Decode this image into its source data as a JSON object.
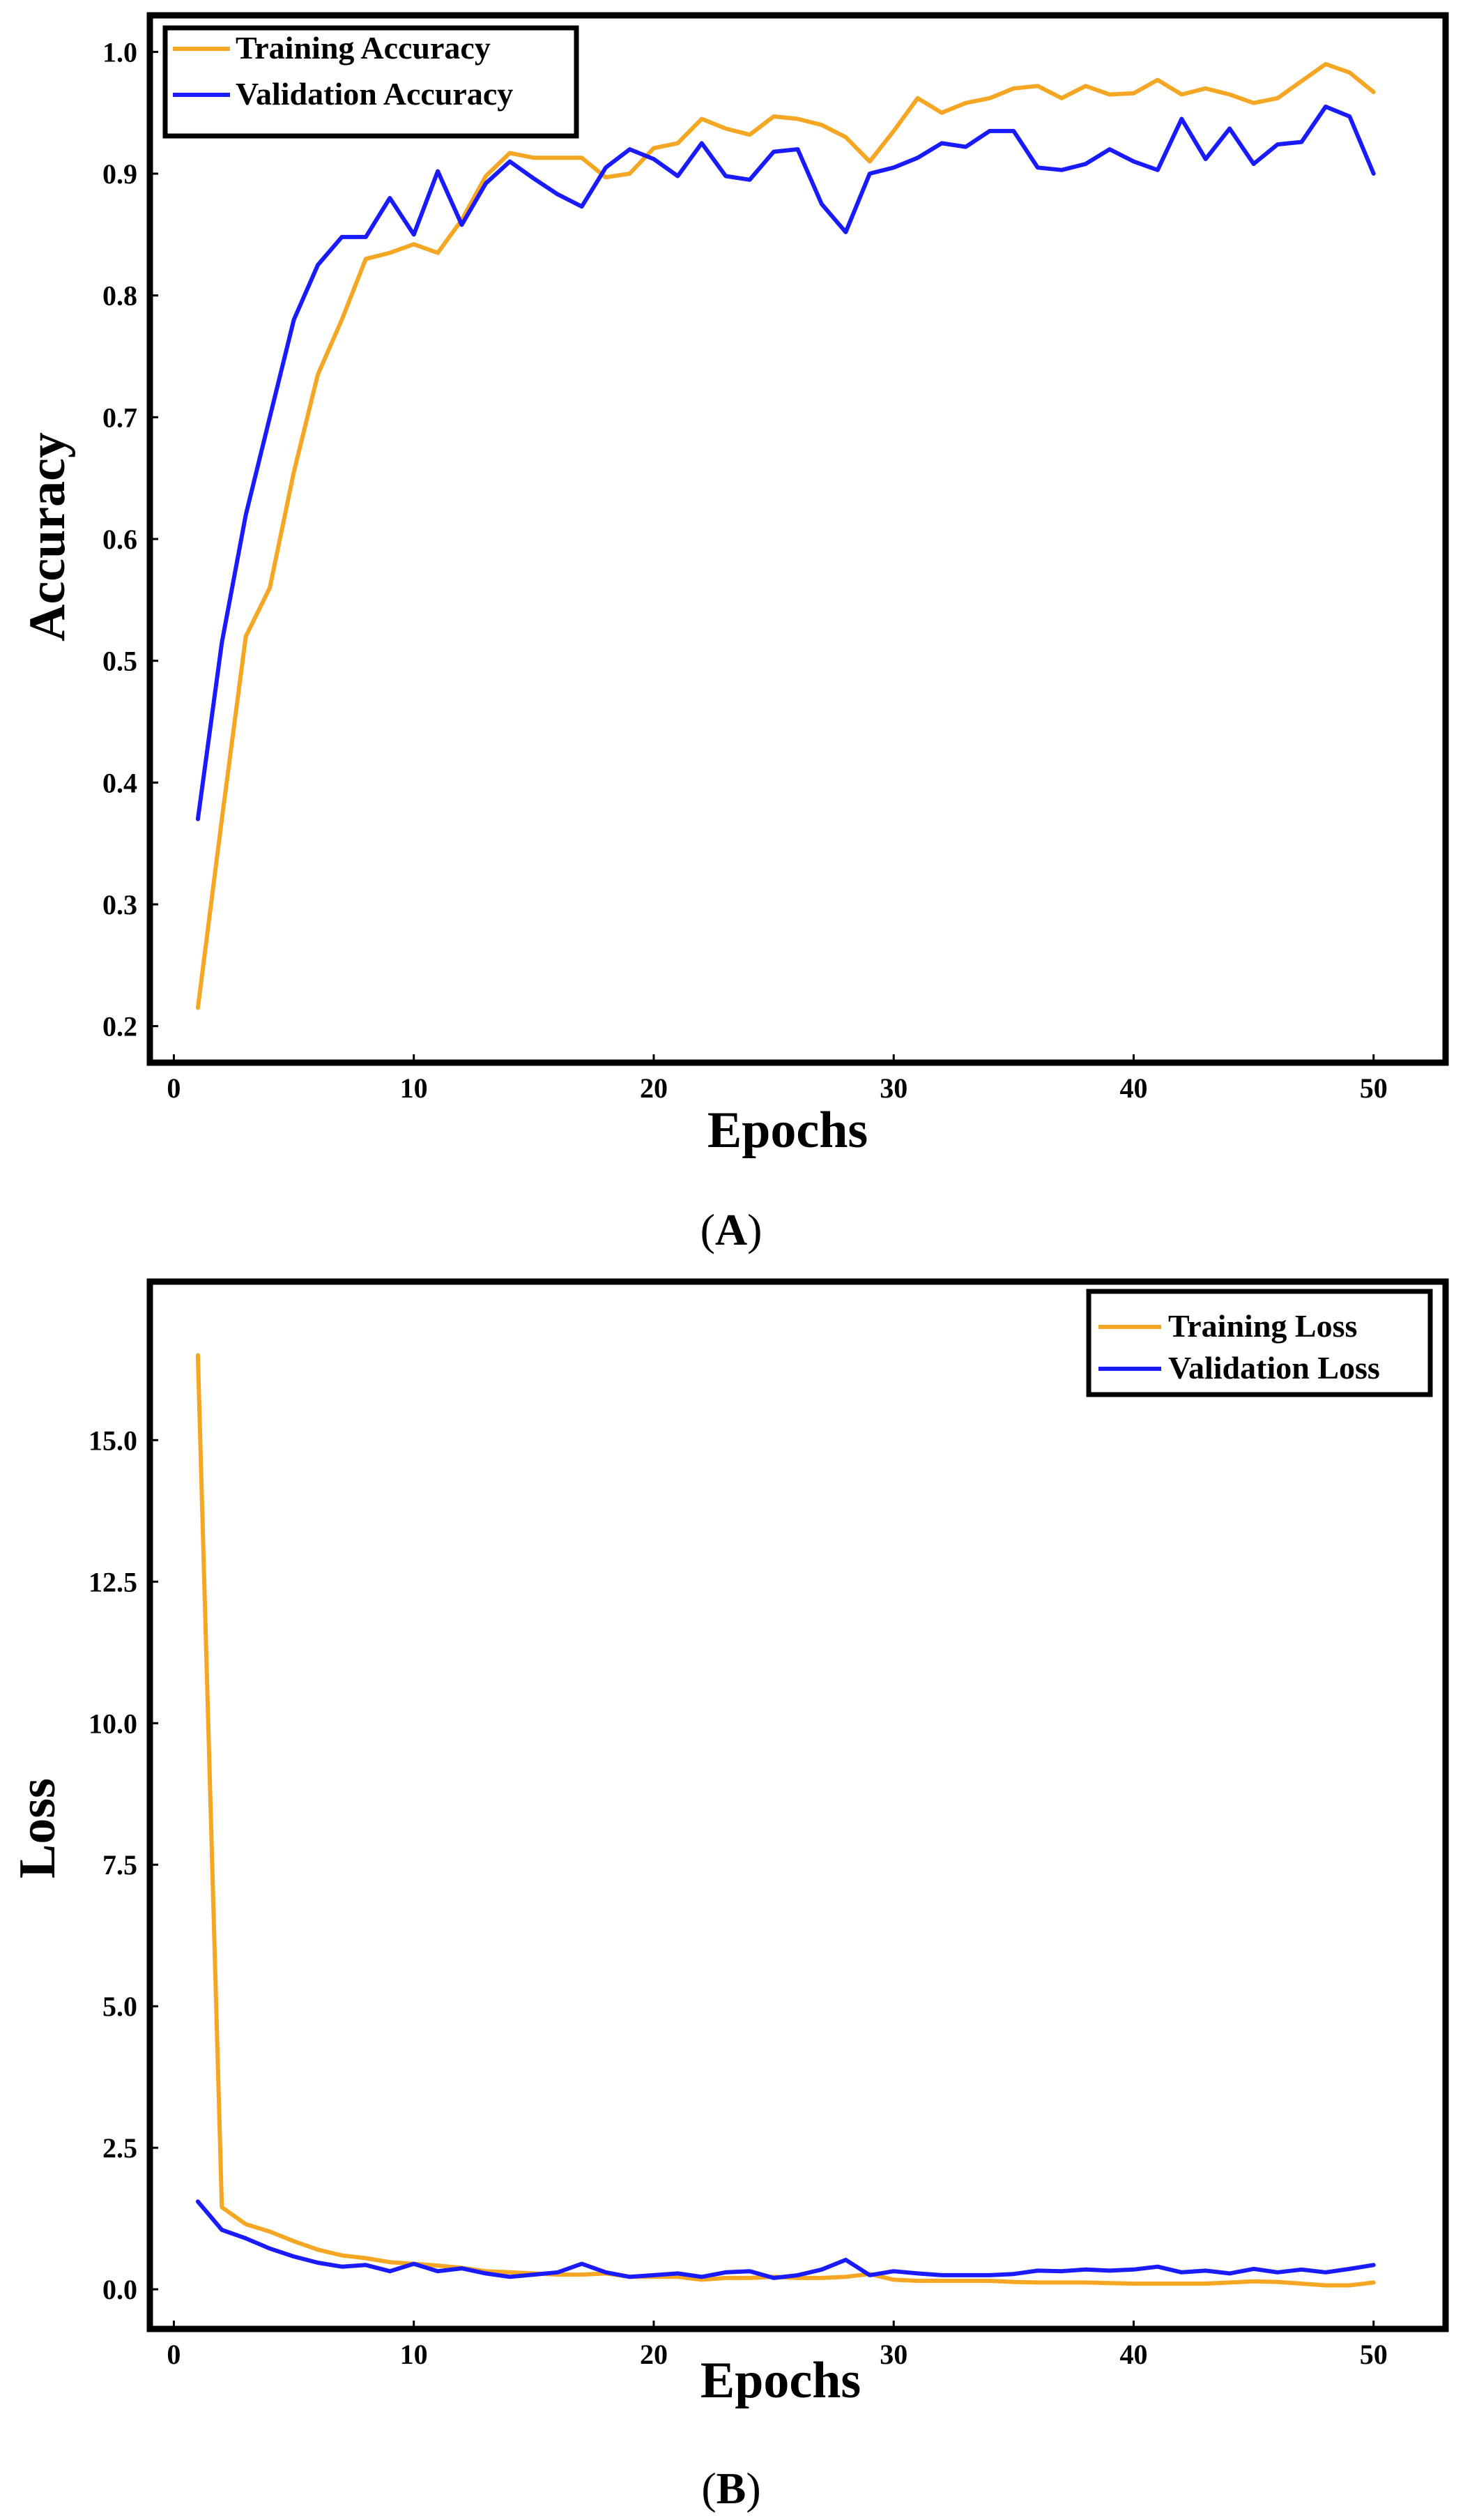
{
  "chart_data": [
    {
      "type": "line",
      "panel": "A",
      "xlabel": "Epochs",
      "ylabel": "Accuracy",
      "xlim": [
        -1,
        53
      ],
      "ylim": [
        0.17,
        1.03
      ],
      "xticks": [
        0,
        10,
        20,
        30,
        40,
        50
      ],
      "yticks": [
        0.2,
        0.3,
        0.4,
        0.5,
        0.6,
        0.7,
        0.8,
        0.9,
        1.0
      ],
      "xtick_labels": [
        "0",
        "10",
        "20",
        "30",
        "40",
        "50"
      ],
      "ytick_labels": [
        "0.2",
        "0.3",
        "0.4",
        "0.5",
        "0.6",
        "0.7",
        "0.8",
        "0.9",
        "1.0"
      ],
      "legend_position": "top-left",
      "grid": false,
      "x": [
        1,
        2,
        3,
        4,
        5,
        6,
        7,
        8,
        9,
        10,
        11,
        12,
        13,
        14,
        15,
        16,
        17,
        18,
        19,
        20,
        21,
        22,
        23,
        24,
        25,
        26,
        27,
        28,
        29,
        30,
        31,
        32,
        33,
        34,
        35,
        36,
        37,
        38,
        39,
        40,
        41,
        42,
        43,
        44,
        45,
        46,
        47,
        48,
        49,
        50
      ],
      "series": [
        {
          "name": "Training Accuracy",
          "color": "#f5a623",
          "values": [
            0.215,
            0.37,
            0.52,
            0.56,
            0.655,
            0.735,
            0.78,
            0.83,
            0.835,
            0.842,
            0.835,
            0.862,
            0.898,
            0.917,
            0.913,
            0.913,
            0.913,
            0.897,
            0.9,
            0.921,
            0.925,
            0.945,
            0.937,
            0.932,
            0.947,
            0.945,
            0.94,
            0.93,
            0.91,
            0.935,
            0.962,
            0.95,
            0.958,
            0.962,
            0.97,
            0.972,
            0.962,
            0.972,
            0.965,
            0.966,
            0.977,
            0.965,
            0.97,
            0.965,
            0.958,
            0.962,
            0.976,
            0.99,
            0.983,
            0.967
          ]
        },
        {
          "name": "Validation Accuracy",
          "color": "#1a1aff",
          "values": [
            0.37,
            0.515,
            0.62,
            0.7,
            0.78,
            0.825,
            0.848,
            0.848,
            0.88,
            0.85,
            0.902,
            0.858,
            0.892,
            0.91,
            0.896,
            0.883,
            0.873,
            0.905,
            0.92,
            0.912,
            0.898,
            0.925,
            0.898,
            0.895,
            0.918,
            0.92,
            0.875,
            0.852,
            0.9,
            0.905,
            0.913,
            0.925,
            0.922,
            0.935,
            0.935,
            0.905,
            0.903,
            0.908,
            0.92,
            0.91,
            0.903,
            0.945,
            0.912,
            0.937,
            0.908,
            0.924,
            0.926,
            0.955,
            0.947,
            0.9
          ]
        }
      ]
    },
    {
      "type": "line",
      "panel": "B",
      "xlabel": "Epochs",
      "ylabel": "Loss",
      "xlim": [
        -1,
        53
      ],
      "ylim": [
        -0.7,
        17.8
      ],
      "xticks": [
        0,
        10,
        20,
        30,
        40,
        50
      ],
      "yticks": [
        0.0,
        2.5,
        5.0,
        7.5,
        10.0,
        12.5,
        15.0
      ],
      "xtick_labels": [
        "0",
        "10",
        "20",
        "30",
        "40",
        "50"
      ],
      "ytick_labels": [
        "0.0",
        "2.5",
        "5.0",
        "7.5",
        "10.0",
        "12.5",
        "15.0"
      ],
      "legend_position": "top-right",
      "grid": false,
      "x": [
        1,
        2,
        3,
        4,
        5,
        6,
        7,
        8,
        9,
        10,
        11,
        12,
        13,
        14,
        15,
        16,
        17,
        18,
        19,
        20,
        21,
        22,
        23,
        24,
        25,
        26,
        27,
        28,
        29,
        30,
        31,
        32,
        33,
        34,
        35,
        36,
        37,
        38,
        39,
        40,
        41,
        42,
        43,
        44,
        45,
        46,
        47,
        48,
        49,
        50
      ],
      "series": [
        {
          "name": "Training Loss",
          "color": "#f5a623",
          "values": [
            16.5,
            1.45,
            1.15,
            1.02,
            0.85,
            0.7,
            0.6,
            0.55,
            0.48,
            0.45,
            0.42,
            0.38,
            0.32,
            0.3,
            0.28,
            0.26,
            0.26,
            0.28,
            0.22,
            0.22,
            0.22,
            0.17,
            0.2,
            0.2,
            0.22,
            0.2,
            0.2,
            0.22,
            0.27,
            0.17,
            0.15,
            0.15,
            0.15,
            0.15,
            0.13,
            0.12,
            0.12,
            0.12,
            0.11,
            0.1,
            0.1,
            0.1,
            0.1,
            0.12,
            0.14,
            0.13,
            0.1,
            0.07,
            0.07,
            0.12
          ]
        },
        {
          "name": "Validation Loss",
          "color": "#1a1aff",
          "values": [
            1.55,
            1.05,
            0.9,
            0.72,
            0.58,
            0.47,
            0.4,
            0.43,
            0.32,
            0.45,
            0.32,
            0.37,
            0.28,
            0.22,
            0.26,
            0.3,
            0.45,
            0.3,
            0.22,
            0.25,
            0.28,
            0.22,
            0.3,
            0.32,
            0.2,
            0.25,
            0.35,
            0.52,
            0.25,
            0.32,
            0.28,
            0.25,
            0.25,
            0.25,
            0.27,
            0.33,
            0.32,
            0.35,
            0.33,
            0.35,
            0.4,
            0.3,
            0.33,
            0.28,
            0.36,
            0.3,
            0.35,
            0.3,
            0.36,
            0.43
          ]
        }
      ]
    }
  ],
  "panel_labels": [
    "A",
    "B"
  ]
}
